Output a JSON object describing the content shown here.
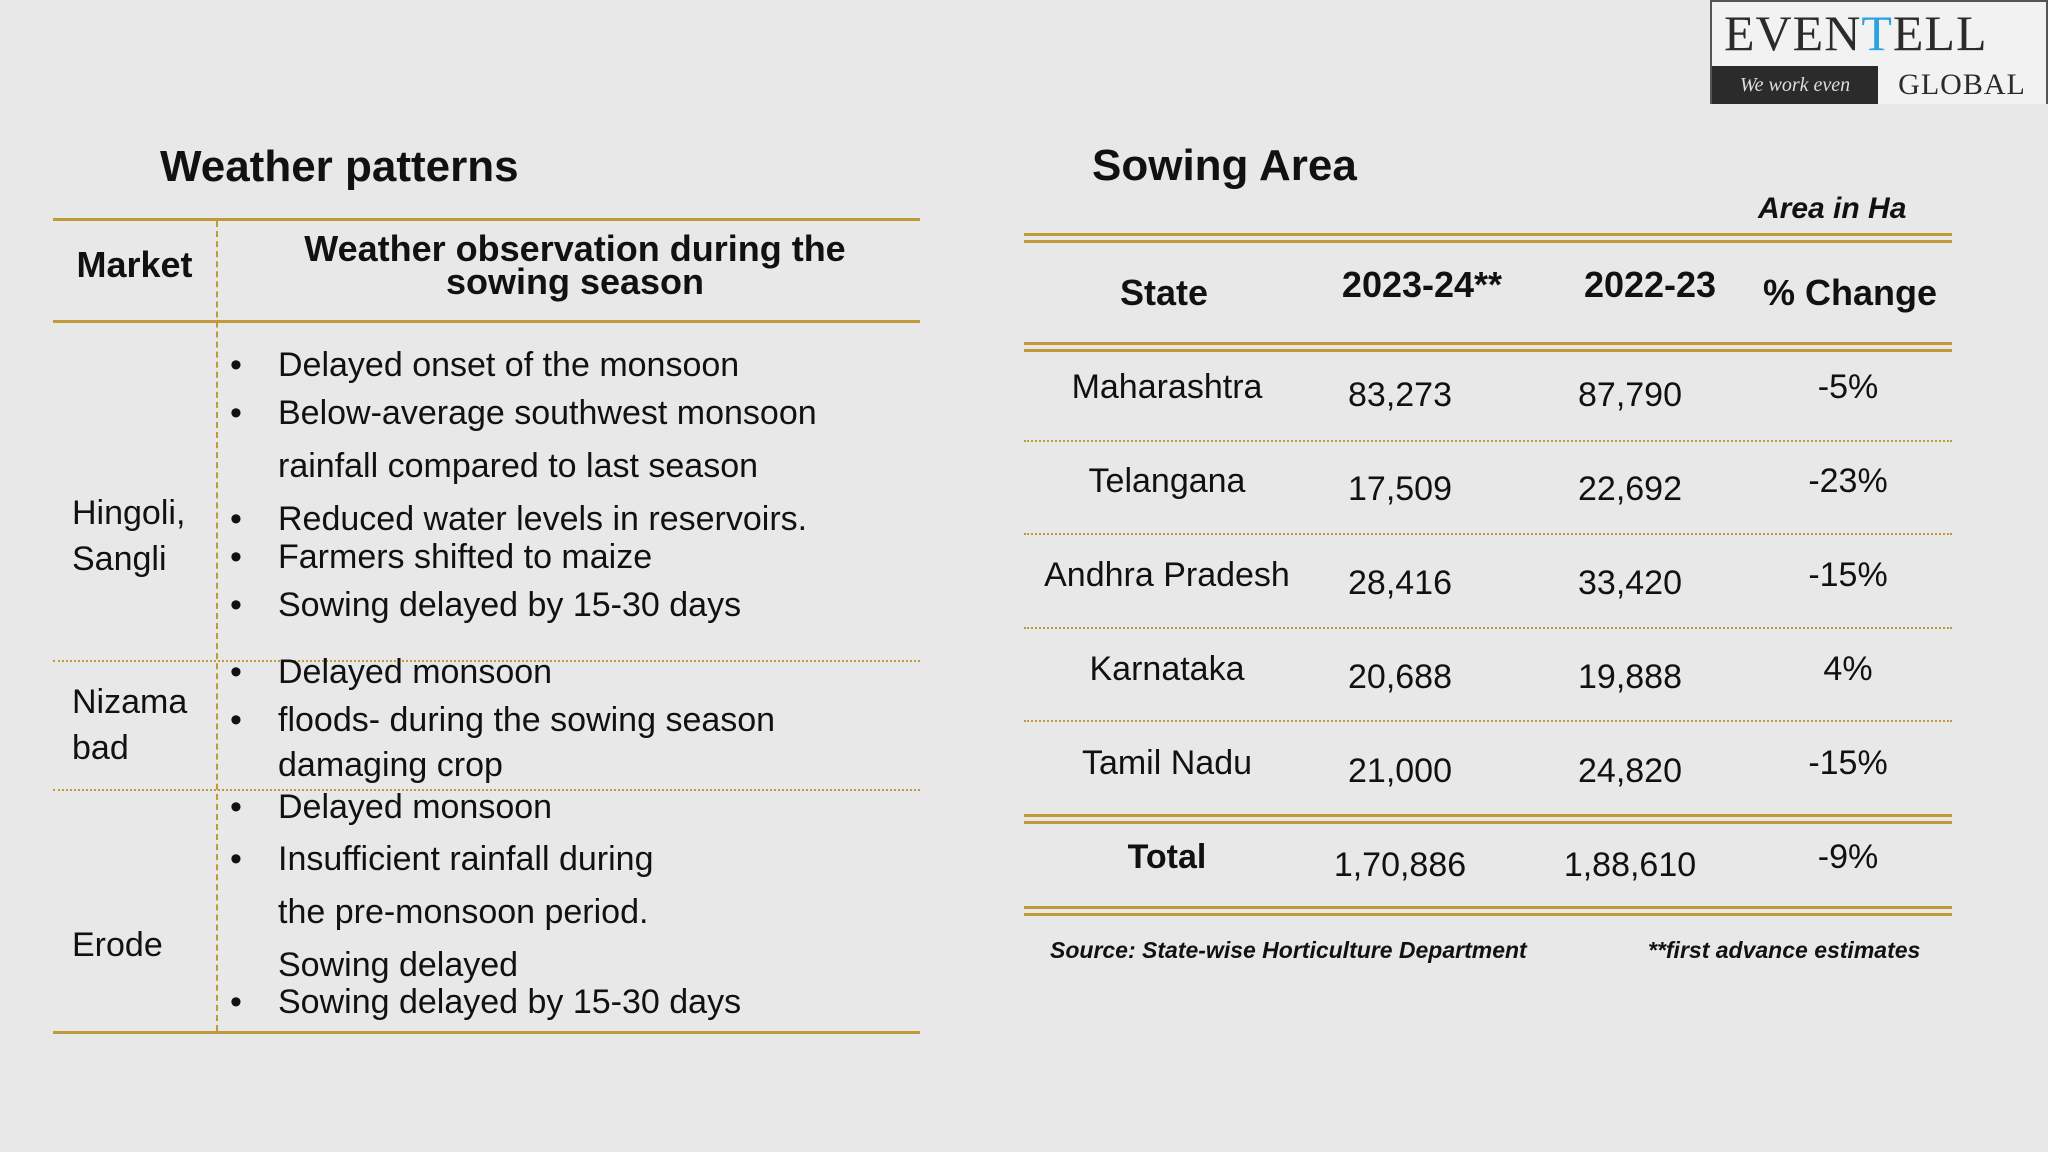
{
  "logo": {
    "word_pre": "EVEN",
    "word_accent": "T",
    "word_post": "ELL",
    "tagline": "We work even",
    "global": "GLOBAL"
  },
  "weather": {
    "title": "Weather patterns",
    "col_market": "Market",
    "col_observation": "Weather observation during the sowing season",
    "rows": [
      {
        "market": [
          "Hingoli,",
          "Sangli"
        ],
        "observations": [
          "Delayed onset of the monsoon",
          "Below-average southwest monsoon",
          "rainfall compared to last season",
          "Reduced water levels in reservoirs.",
          "Farmers shifted to maize",
          "Sowing delayed by 15-30 days"
        ]
      },
      {
        "market": [
          "Nizama",
          "bad"
        ],
        "observations": [
          "Delayed monsoon",
          "floods- during the sowing season",
          "damaging  crop"
        ]
      },
      {
        "market": [
          "Erode"
        ],
        "observations": [
          "Delayed monsoon",
          "Insufficient rainfall during",
          "the pre-monsoon period.",
          "Sowing delayed",
          "Sowing delayed by 15-30 days"
        ]
      }
    ]
  },
  "sowing": {
    "title": "Sowing Area",
    "unit_note": "Area in Ha",
    "columns": [
      "State",
      "2023-24**",
      "2022-23",
      "% Change"
    ],
    "rows": [
      [
        "Maharashtra",
        "83,273",
        "87,790",
        "-5%"
      ],
      [
        "Telangana",
        "17,509",
        "22,692",
        "-23%"
      ],
      [
        "Andhra Pradesh",
        "28,416",
        "33,420",
        "-15%"
      ],
      [
        "Karnataka",
        "20,688",
        "19,888",
        "4%"
      ],
      [
        "Tamil Nadu",
        "21,000",
        "24,820",
        "-15%"
      ]
    ],
    "total": [
      "Total",
      "1,70,886",
      "1,88,610",
      "-9%"
    ],
    "source": "Source: State-wise Horticulture Department",
    "footnote": "**first advance estimates"
  },
  "colors": {
    "rule": "#c09a3a",
    "background": "#e8e8e8",
    "logo_accent": "#2aa3e0"
  }
}
